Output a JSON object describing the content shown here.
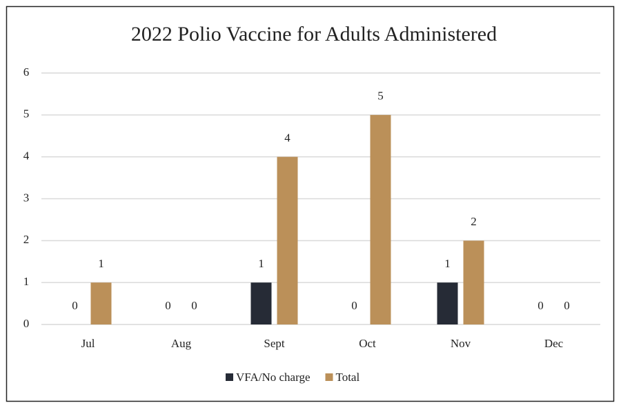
{
  "chart_data": {
    "type": "bar",
    "title": "2022 Polio Vaccine for Adults Administered",
    "categories": [
      "Jul",
      "Aug",
      "Sept",
      "Oct",
      "Nov",
      "Dec"
    ],
    "series": [
      {
        "name": "VFA/No charge",
        "color": "#262b36",
        "values": [
          0,
          0,
          1,
          0,
          1,
          0
        ]
      },
      {
        "name": "Total",
        "color": "#bb9059",
        "values": [
          1,
          0,
          4,
          5,
          2,
          0
        ]
      }
    ],
    "ylim": [
      0,
      6
    ],
    "yticks": [
      0,
      1,
      2,
      3,
      4,
      5,
      6
    ],
    "grid": true,
    "legend": "bottom"
  }
}
